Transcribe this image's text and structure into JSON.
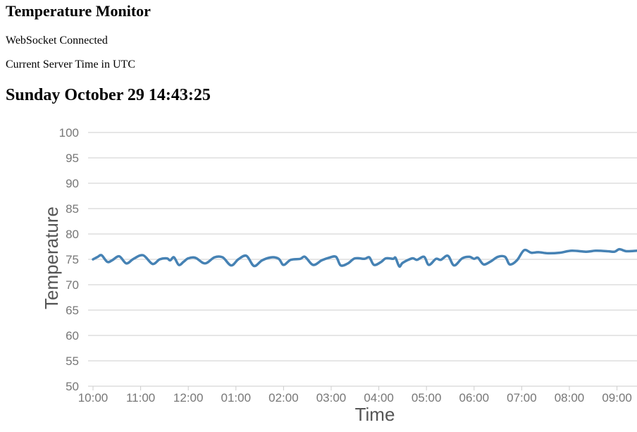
{
  "header": {
    "title": "Temperature Monitor",
    "ws_status": "WebSocket Connected",
    "time_label": "Current Server Time in UTC",
    "server_time": "Sunday October 29 14:43:25"
  },
  "colors": {
    "series": "#4682b4",
    "grid": "#cccccc",
    "tick_text": "#777777",
    "axis_title": "#555555"
  },
  "chart_data": {
    "type": "line",
    "xlabel": "Time",
    "ylabel": "Temperature",
    "ylim": [
      50,
      100
    ],
    "yticks": [
      50,
      55,
      60,
      65,
      70,
      75,
      80,
      85,
      90,
      95,
      100
    ],
    "xlim": [
      10.0,
      9.42
    ],
    "xticks": [
      {
        "value": 10,
        "label": "10:00"
      },
      {
        "value": 11,
        "label": "11:00"
      },
      {
        "value": 12,
        "label": "12:00"
      },
      {
        "value": 13,
        "label": "01:00"
      },
      {
        "value": 14,
        "label": "02:00"
      },
      {
        "value": 15,
        "label": "03:00"
      },
      {
        "value": 16,
        "label": "04:00"
      },
      {
        "value": 17,
        "label": "05:00"
      },
      {
        "value": 18,
        "label": "06:00"
      },
      {
        "value": 19,
        "label": "07:00"
      },
      {
        "value": 20,
        "label": "08:00"
      },
      {
        "value": 21,
        "label": "09:00"
      }
    ],
    "grid": true,
    "series": [
      {
        "values": [
          [
            10.0,
            75.0
          ],
          [
            10.1,
            75.5
          ],
          [
            10.18,
            75.8
          ],
          [
            10.3,
            74.5
          ],
          [
            10.4,
            74.8
          ],
          [
            10.55,
            75.6
          ],
          [
            10.7,
            74.2
          ],
          [
            10.85,
            75.1
          ],
          [
            11.05,
            75.8
          ],
          [
            11.25,
            74.1
          ],
          [
            11.4,
            75.0
          ],
          [
            11.55,
            75.2
          ],
          [
            11.62,
            74.8
          ],
          [
            11.7,
            75.4
          ],
          [
            11.8,
            73.9
          ],
          [
            11.9,
            74.5
          ],
          [
            12.0,
            75.2
          ],
          [
            12.15,
            75.3
          ],
          [
            12.35,
            74.2
          ],
          [
            12.55,
            75.4
          ],
          [
            12.72,
            75.4
          ],
          [
            12.9,
            73.8
          ],
          [
            13.05,
            75.0
          ],
          [
            13.22,
            75.7
          ],
          [
            13.38,
            73.7
          ],
          [
            13.55,
            74.8
          ],
          [
            13.75,
            75.4
          ],
          [
            13.9,
            75.1
          ],
          [
            14.0,
            73.9
          ],
          [
            14.15,
            74.9
          ],
          [
            14.35,
            75.1
          ],
          [
            14.45,
            75.5
          ],
          [
            14.62,
            73.9
          ],
          [
            14.8,
            74.8
          ],
          [
            14.95,
            75.3
          ],
          [
            15.1,
            75.5
          ],
          [
            15.2,
            73.8
          ],
          [
            15.35,
            74.2
          ],
          [
            15.5,
            75.2
          ],
          [
            15.7,
            75.1
          ],
          [
            15.8,
            75.4
          ],
          [
            15.9,
            73.9
          ],
          [
            16.05,
            74.5
          ],
          [
            16.15,
            75.2
          ],
          [
            16.3,
            75.1
          ],
          [
            16.35,
            75.3
          ],
          [
            16.43,
            73.6
          ],
          [
            16.5,
            74.3
          ],
          [
            16.7,
            75.2
          ],
          [
            16.8,
            74.9
          ],
          [
            16.95,
            75.5
          ],
          [
            17.05,
            73.9
          ],
          [
            17.2,
            75.1
          ],
          [
            17.3,
            74.9
          ],
          [
            17.45,
            75.7
          ],
          [
            17.58,
            73.8
          ],
          [
            17.75,
            75.2
          ],
          [
            17.9,
            75.5
          ],
          [
            18.0,
            75.1
          ],
          [
            18.08,
            75.3
          ],
          [
            18.2,
            74.0
          ],
          [
            18.35,
            74.6
          ],
          [
            18.5,
            75.5
          ],
          [
            18.65,
            75.5
          ],
          [
            18.75,
            74.0
          ],
          [
            18.9,
            74.8
          ],
          [
            19.05,
            76.8
          ],
          [
            19.2,
            76.3
          ],
          [
            19.35,
            76.4
          ],
          [
            19.55,
            76.2
          ],
          [
            19.8,
            76.3
          ],
          [
            20.05,
            76.7
          ],
          [
            20.35,
            76.5
          ],
          [
            20.55,
            76.7
          ],
          [
            20.8,
            76.6
          ],
          [
            20.95,
            76.5
          ],
          [
            21.05,
            77.0
          ],
          [
            21.2,
            76.6
          ],
          [
            21.42,
            76.7
          ]
        ]
      }
    ]
  }
}
